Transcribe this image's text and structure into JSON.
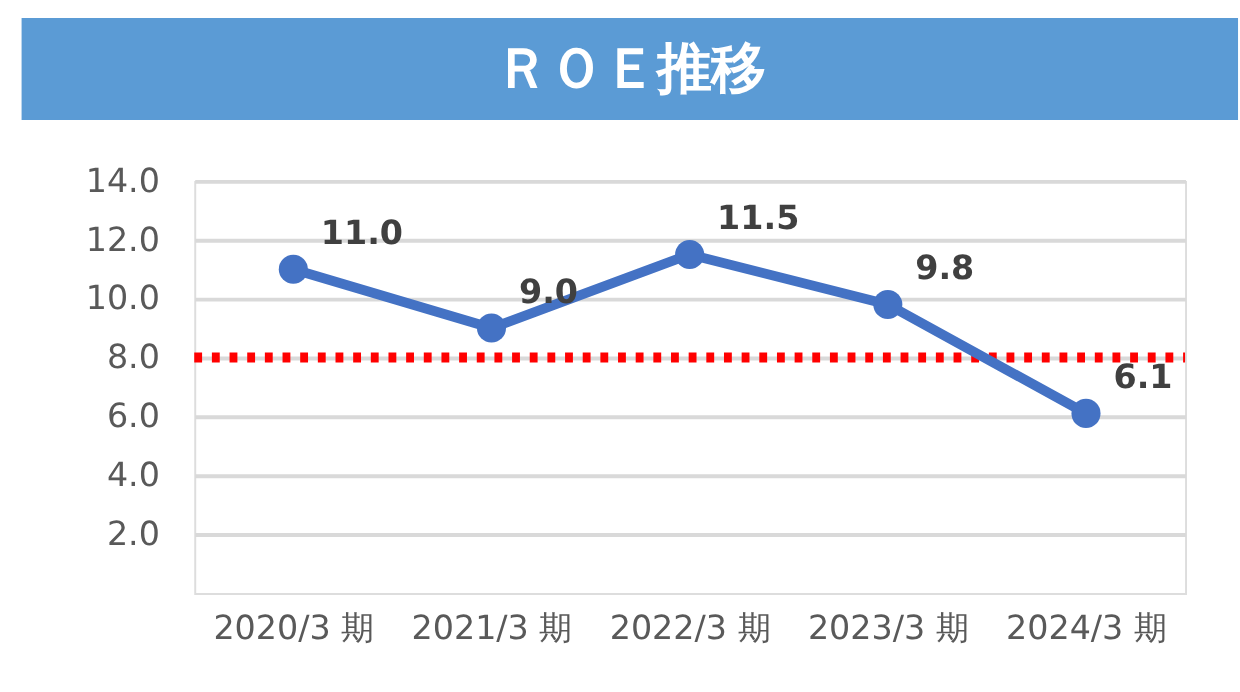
{
  "chart_data": {
    "type": "line",
    "title": "ＲＯＥ推移",
    "categories": [
      "2020/3 期",
      "2021/3 期",
      "2022/3 期",
      "2023/3 期",
      "2024/3 期"
    ],
    "series": [
      {
        "color": "#4472c4",
        "values": [
          11.0,
          9.0,
          11.5,
          9.8,
          6.1
        ],
        "value_labels": [
          "11.0",
          "9.0",
          "11.5",
          "9.8",
          "6.1"
        ]
      }
    ],
    "ylim": [
      0,
      14
    ],
    "yticks": [
      {
        "value": 2,
        "label": "2.0"
      },
      {
        "value": 4,
        "label": "4.0"
      },
      {
        "value": 6,
        "label": "6.0"
      },
      {
        "value": 8,
        "label": "8.0"
      },
      {
        "value": 10,
        "label": "10.0"
      },
      {
        "value": 12,
        "label": "12.0"
      },
      {
        "value": 14,
        "label": "14.0"
      }
    ],
    "grid": "y",
    "marker": "circle",
    "line_style": "solid",
    "legend": false,
    "ref_lines": [
      {
        "axis": "y",
        "value": 8,
        "color": "#ff0000",
        "line_style": "dotted"
      }
    ]
  }
}
